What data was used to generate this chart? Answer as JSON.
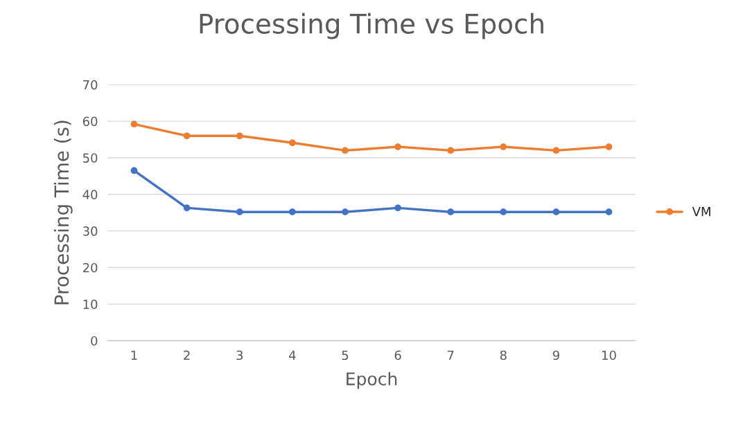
{
  "chart_data": {
    "type": "line",
    "title": "Processing Time vs Epoch",
    "xlabel": "Epoch",
    "ylabel": "Processing Time (s)",
    "categories": [
      "1",
      "2",
      "3",
      "4",
      "5",
      "6",
      "7",
      "8",
      "9",
      "10"
    ],
    "series": [
      {
        "color": "#4472c4",
        "values": [
          46.5,
          36.3,
          35.2,
          35.2,
          35.2,
          36.3,
          35.2,
          35.2,
          35.2,
          35.2
        ]
      },
      {
        "name": "VM",
        "color": "#ed7d31",
        "values": [
          59.2,
          56,
          56,
          54.1,
          52,
          53,
          52,
          53,
          52,
          53
        ]
      }
    ],
    "ylim": [
      0,
      70
    ],
    "yticks": [
      0,
      10,
      20,
      30,
      40,
      50,
      60,
      70
    ],
    "grid": "y",
    "legend": "right",
    "marker": "circle",
    "line_style": "solid"
  }
}
